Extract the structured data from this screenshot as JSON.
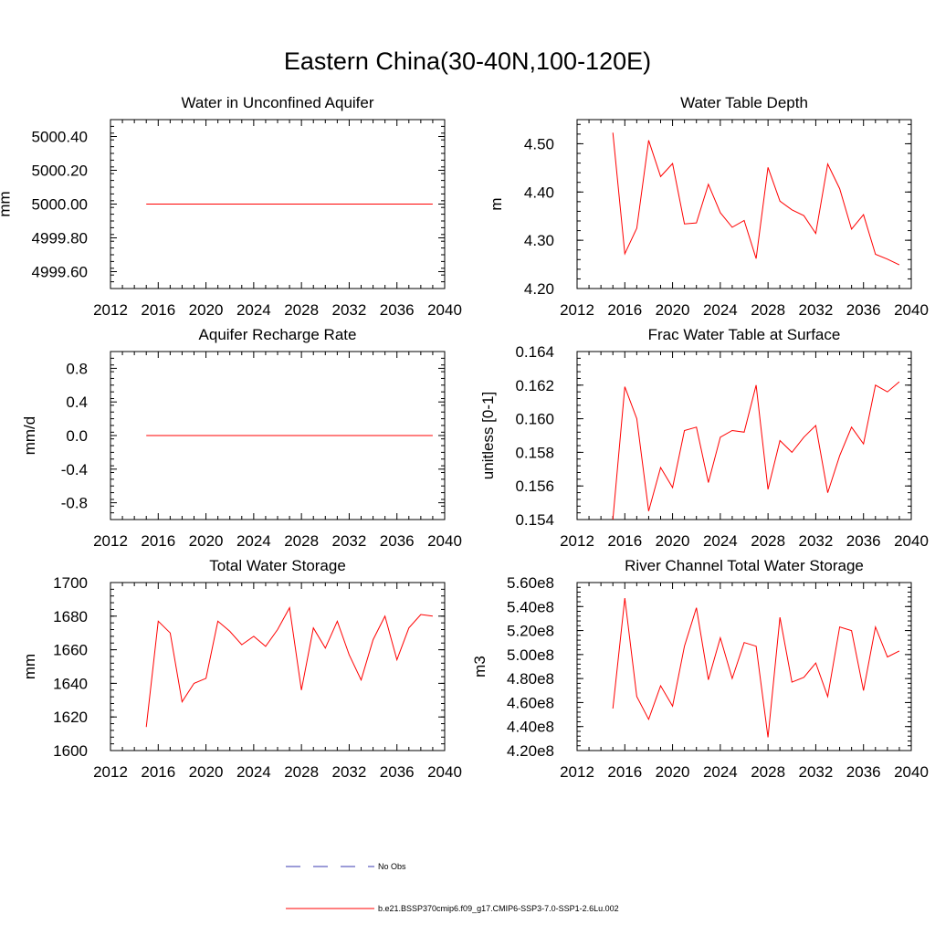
{
  "figure": {
    "title": "Eastern China(30-40N,100-120E)",
    "line_color": "#ff0000",
    "obs_color": "#3a3ab0"
  },
  "legend": {
    "obs_label": "No Obs",
    "model_label": "b.e21.BSSP370cmip6.f09_g17.CMIP6-SSP3-7.0-SSP1-2.6Lu.002"
  },
  "chart_data": [
    {
      "type": "line",
      "title": "Water in Unconfined Aquifer",
      "ylabel": "mm",
      "xlim": [
        2012,
        2040
      ],
      "ylim": [
        4999.5,
        5000.5
      ],
      "xticks": [
        2012,
        2016,
        2020,
        2024,
        2028,
        2032,
        2036,
        2040
      ],
      "yticks": [
        4999.6,
        4999.8,
        5000.0,
        5000.2,
        5000.4
      ],
      "ytick_labels": [
        "4999.60",
        "4999.80",
        "5000.00",
        "5000.20",
        "5000.40"
      ],
      "x": [
        2015,
        2016,
        2017,
        2018,
        2019,
        2020,
        2021,
        2022,
        2023,
        2024,
        2025,
        2026,
        2027,
        2028,
        2029,
        2030,
        2031,
        2032,
        2033,
        2034,
        2035,
        2036,
        2037,
        2038,
        2039
      ],
      "series": [
        {
          "values": [
            5000,
            5000,
            5000,
            5000,
            5000,
            5000,
            5000,
            5000,
            5000,
            5000,
            5000,
            5000,
            5000,
            5000,
            5000,
            5000,
            5000,
            5000,
            5000,
            5000,
            5000,
            5000,
            5000,
            5000,
            5000
          ]
        }
      ]
    },
    {
      "type": "line",
      "title": "Water Table Depth",
      "ylabel": "m",
      "xlim": [
        2012,
        2040
      ],
      "ylim": [
        4.2,
        4.55
      ],
      "xticks": [
        2012,
        2016,
        2020,
        2024,
        2028,
        2032,
        2036,
        2040
      ],
      "yticks": [
        4.2,
        4.3,
        4.4,
        4.5
      ],
      "ytick_labels": [
        "4.20",
        "4.30",
        "4.40",
        "4.50"
      ],
      "x": [
        2015,
        2016,
        2017,
        2018,
        2019,
        2020,
        2021,
        2022,
        2023,
        2024,
        2025,
        2026,
        2027,
        2028,
        2029,
        2030,
        2031,
        2032,
        2033,
        2034,
        2035,
        2036,
        2037,
        2038,
        2039
      ],
      "series": [
        {
          "values": [
            4.523,
            4.272,
            4.325,
            4.507,
            4.432,
            4.459,
            4.334,
            4.336,
            4.416,
            4.357,
            4.327,
            4.341,
            4.262,
            4.451,
            4.381,
            4.363,
            4.351,
            4.314,
            4.458,
            4.407,
            4.323,
            4.353,
            4.271,
            4.261,
            4.249
          ]
        }
      ]
    },
    {
      "type": "line",
      "title": "Aquifer Recharge Rate",
      "ylabel": "mm/d",
      "xlim": [
        2012,
        2040
      ],
      "ylim": [
        -1.0,
        1.0
      ],
      "xticks": [
        2012,
        2016,
        2020,
        2024,
        2028,
        2032,
        2036,
        2040
      ],
      "yticks": [
        -0.8,
        -0.4,
        0.0,
        0.4,
        0.8
      ],
      "ytick_labels": [
        "-0.8",
        "-0.4",
        "0.0",
        "0.4",
        "0.8"
      ],
      "x": [
        2015,
        2016,
        2017,
        2018,
        2019,
        2020,
        2021,
        2022,
        2023,
        2024,
        2025,
        2026,
        2027,
        2028,
        2029,
        2030,
        2031,
        2032,
        2033,
        2034,
        2035,
        2036,
        2037,
        2038,
        2039
      ],
      "series": [
        {
          "values": [
            0,
            0,
            0,
            0,
            0,
            0,
            0,
            0,
            0,
            0,
            0,
            0,
            0,
            0,
            0,
            0,
            0,
            0,
            0,
            0,
            0,
            0,
            0,
            0,
            0
          ]
        }
      ]
    },
    {
      "type": "line",
      "title": "Frac Water Table at Surface",
      "ylabel": "unitless [0-1]",
      "xlim": [
        2012,
        2040
      ],
      "ylim": [
        0.154,
        0.164
      ],
      "xticks": [
        2012,
        2016,
        2020,
        2024,
        2028,
        2032,
        2036,
        2040
      ],
      "yticks": [
        0.154,
        0.156,
        0.158,
        0.16,
        0.162,
        0.164
      ],
      "ytick_labels": [
        "0.154",
        "0.156",
        "0.158",
        "0.160",
        "0.162",
        "0.164"
      ],
      "x": [
        2015,
        2016,
        2017,
        2018,
        2019,
        2020,
        2021,
        2022,
        2023,
        2024,
        2025,
        2026,
        2027,
        2028,
        2029,
        2030,
        2031,
        2032,
        2033,
        2034,
        2035,
        2036,
        2037,
        2038,
        2039
      ],
      "series": [
        {
          "values": [
            0.154,
            0.1619,
            0.16,
            0.1545,
            0.1571,
            0.1559,
            0.1593,
            0.1595,
            0.1562,
            0.1589,
            0.1593,
            0.1592,
            0.162,
            0.1558,
            0.1587,
            0.158,
            0.1589,
            0.1596,
            0.1556,
            0.1578,
            0.1595,
            0.1585,
            0.162,
            0.1616,
            0.1622
          ]
        }
      ]
    },
    {
      "type": "line",
      "title": "Total Water Storage",
      "ylabel": "mm",
      "xlim": [
        2012,
        2040
      ],
      "ylim": [
        1600,
        1700
      ],
      "xticks": [
        2012,
        2016,
        2020,
        2024,
        2028,
        2032,
        2036,
        2040
      ],
      "yticks": [
        1600,
        1620,
        1640,
        1660,
        1680,
        1700
      ],
      "ytick_labels": [
        "1600",
        "1620",
        "1640",
        "1660",
        "1680",
        "1700"
      ],
      "x": [
        2015,
        2016,
        2017,
        2018,
        2019,
        2020,
        2021,
        2022,
        2023,
        2024,
        2025,
        2026,
        2027,
        2028,
        2029,
        2030,
        2031,
        2032,
        2033,
        2034,
        2035,
        2036,
        2037,
        2038,
        2039
      ],
      "series": [
        {
          "values": [
            1614,
            1677,
            1670,
            1629,
            1640,
            1643,
            1677,
            1671,
            1663,
            1668,
            1662,
            1672,
            1685,
            1636,
            1673,
            1661,
            1677,
            1657,
            1642,
            1666,
            1680,
            1654,
            1673,
            1681,
            1680
          ]
        }
      ]
    },
    {
      "type": "line",
      "title": "River Channel Total Water Storage",
      "ylabel": "m3",
      "xlim": [
        2012,
        2040
      ],
      "ylim": [
        420000000,
        560000000
      ],
      "xticks": [
        2012,
        2016,
        2020,
        2024,
        2028,
        2032,
        2036,
        2040
      ],
      "yticks": [
        420000000,
        440000000,
        460000000,
        480000000,
        500000000,
        520000000,
        540000000,
        560000000
      ],
      "ytick_labels": [
        "4.20e8",
        "4.40e8",
        "4.60e8",
        "4.80e8",
        "5.00e8",
        "5.20e8",
        "5.40e8",
        "5.60e8"
      ],
      "x": [
        2015,
        2016,
        2017,
        2018,
        2019,
        2020,
        2021,
        2022,
        2023,
        2024,
        2025,
        2026,
        2027,
        2028,
        2029,
        2030,
        2031,
        2032,
        2033,
        2034,
        2035,
        2036,
        2037,
        2038,
        2039
      ],
      "series": [
        {
          "values": [
            455000000,
            547000000,
            465000000,
            446000000,
            474000000,
            457000000,
            507000000,
            539000000,
            479000000,
            514000000,
            480000000,
            510000000,
            507000000,
            431000000,
            531000000,
            477000000,
            481000000,
            493000000,
            465000000,
            523000000,
            520000000,
            470000000,
            523000000,
            498000000,
            503000000
          ]
        }
      ]
    }
  ]
}
